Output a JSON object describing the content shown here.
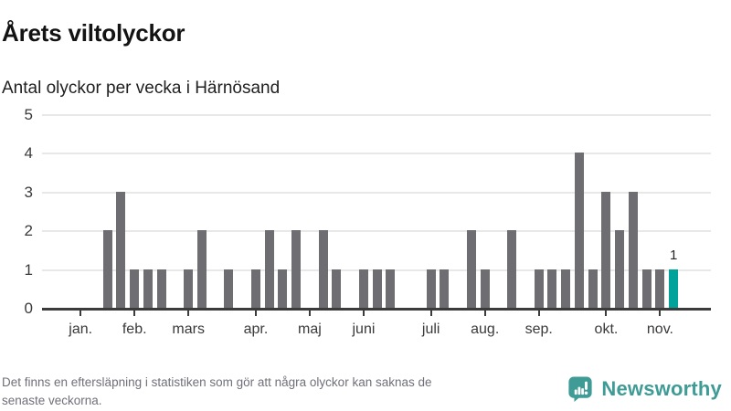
{
  "header": {
    "title": "Årets viltolyckor",
    "subtitle": "Antal olyckor per vecka i Härnösand"
  },
  "chart_data": {
    "type": "bar",
    "title": "Årets viltolyckor",
    "subtitle": "Antal olyckor per vecka i Härnösand",
    "x_unit": "vecka",
    "ylim": [
      0,
      5
    ],
    "yticks": [
      0,
      1,
      2,
      3,
      4,
      5
    ],
    "grid": true,
    "legend_position": "none",
    "values_per_week": [
      0,
      0,
      0,
      0,
      2,
      3,
      1,
      1,
      1,
      0,
      1,
      2,
      0,
      1,
      0,
      1,
      2,
      1,
      2,
      0,
      2,
      1,
      0,
      1,
      1,
      1,
      0,
      0,
      1,
      1,
      0,
      2,
      1,
      0,
      2,
      0,
      1,
      1,
      1,
      4,
      1,
      3,
      2,
      3,
      1,
      1,
      1
    ],
    "month_ticks": [
      {
        "slot": 2,
        "label": "jan."
      },
      {
        "slot": 6,
        "label": "feb."
      },
      {
        "slot": 10,
        "label": "mars"
      },
      {
        "slot": 15,
        "label": "apr."
      },
      {
        "slot": 19,
        "label": "maj"
      },
      {
        "slot": 23,
        "label": "juni"
      },
      {
        "slot": 28,
        "label": "juli"
      },
      {
        "slot": 32,
        "label": "aug."
      },
      {
        "slot": 36,
        "label": "sep."
      },
      {
        "slot": 41,
        "label": "okt."
      },
      {
        "slot": 45,
        "label": "nov."
      }
    ],
    "highlight": {
      "index": 46,
      "value": 1,
      "label": "1"
    },
    "colors": {
      "bar": "#6d6d72",
      "highlight": "#00a29a",
      "gridline": "#e8e8e8",
      "axis": "#3b3b3b"
    }
  },
  "footer": {
    "note_lines": [
      "Det finns en eftersläpning i statistiken som gör att några olyckor kan saknas de",
      "senaste veckorna."
    ],
    "brand": "Newsworthy",
    "brand_color": "#3e9b95"
  }
}
